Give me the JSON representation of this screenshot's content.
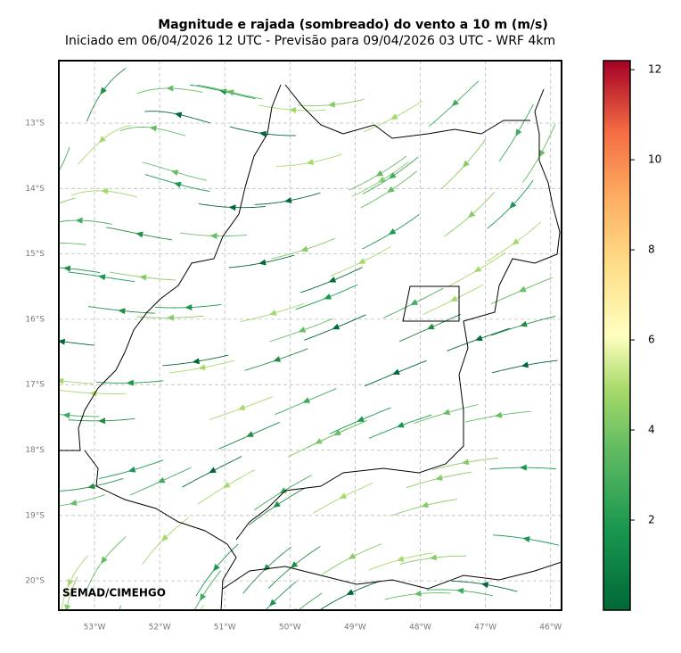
{
  "title": "Magnitude e rajada (sombreado) do vento a 10 m (m/s)",
  "subtitle": "Iniciado em 06/04/2026 12 UTC - Previsão para 09/04/2026 03 UTC - WRF 4km",
  "credit": "SEMAD/CIMEHGO",
  "latitude_labels": [
    "13°S",
    "14°S",
    "15°S",
    "16°S",
    "17°S",
    "18°S",
    "19°S",
    "20°S"
  ],
  "longitude_labels": [
    "53°W",
    "52°W",
    "51°W",
    "50°W",
    "49°W",
    "48°W",
    "47°W",
    "46°W"
  ],
  "colorbar": {
    "lim": [
      0,
      12.2
    ],
    "ticks": [
      2,
      4,
      6,
      8,
      10,
      12
    ]
  }
}
